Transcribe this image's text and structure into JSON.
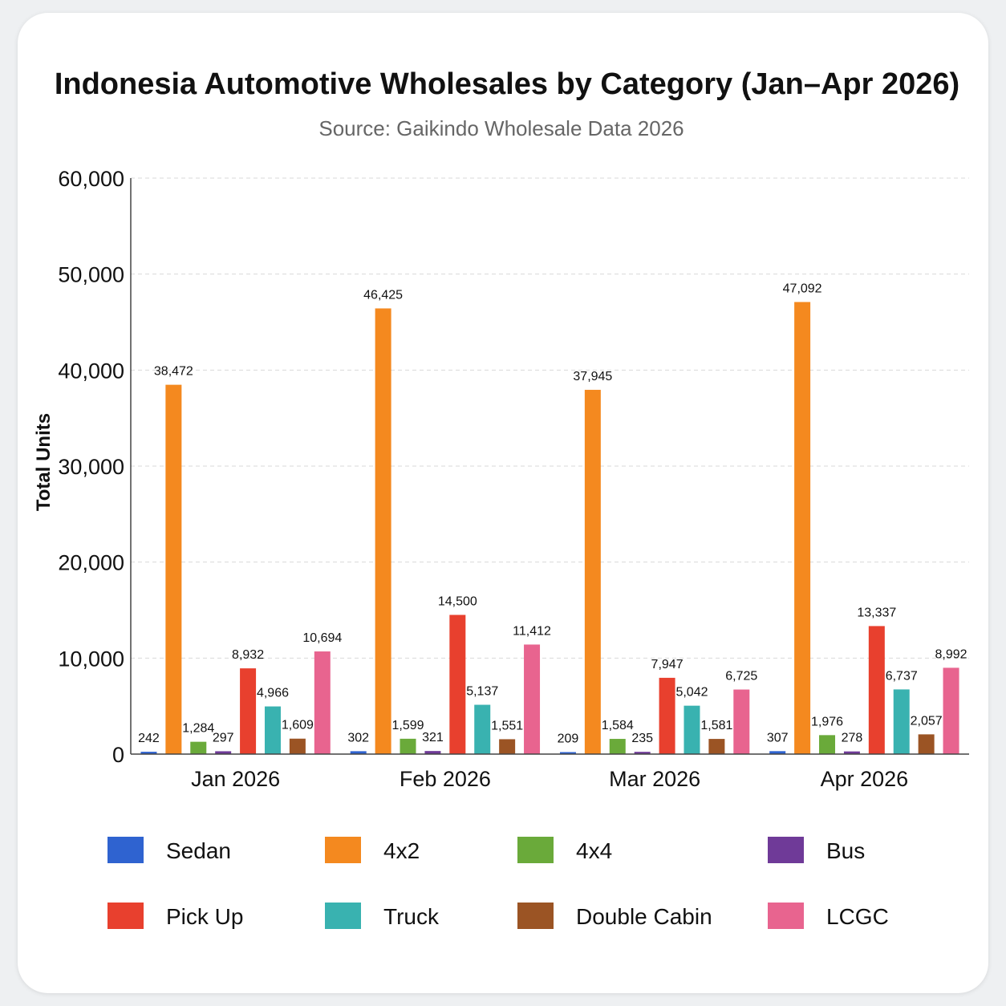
{
  "chart_data": {
    "type": "bar",
    "title": "Indonesia Automotive Wholesales by Category (Jan–Apr 2026)",
    "subtitle": "Source: Gaikindo Wholesale Data 2026",
    "xlabel": "",
    "ylabel": "Total Units",
    "ylim": [
      0,
      60000
    ],
    "yticks": [
      0,
      10000,
      20000,
      30000,
      40000,
      50000,
      60000
    ],
    "ytick_labels": [
      "0",
      "10,000",
      "20,000",
      "30,000",
      "40,000",
      "50,000",
      "60,000"
    ],
    "grid": true,
    "legend_position": "bottom",
    "categories": [
      "Jan 2026",
      "Feb 2026",
      "Mar 2026",
      "Apr 2026"
    ],
    "series": [
      {
        "name": "Sedan",
        "color": "#2f63d0",
        "values": [
          242,
          302,
          209,
          307
        ],
        "labels": [
          "242",
          "302",
          "209",
          "307"
        ]
      },
      {
        "name": "4x2",
        "color": "#f4891f",
        "values": [
          38472,
          46425,
          37945,
          47092
        ],
        "labels": [
          "38,472",
          "46,425",
          "37,945",
          "47,092"
        ]
      },
      {
        "name": "4x4",
        "color": "#6aaa3a",
        "values": [
          1284,
          1599,
          1584,
          1976
        ],
        "labels": [
          "1,284",
          "1,599",
          "1,584",
          "1,976"
        ]
      },
      {
        "name": "Bus",
        "color": "#6f3a98",
        "values": [
          297,
          321,
          235,
          278
        ],
        "labels": [
          "297",
          "321",
          "235",
          "278"
        ]
      },
      {
        "name": "Pick Up",
        "color": "#e8402e",
        "values": [
          8932,
          14500,
          7947,
          13337
        ],
        "labels": [
          "8,932",
          "14,500",
          "7,947",
          "13,337"
        ]
      },
      {
        "name": "Truck",
        "color": "#39b2b0",
        "values": [
          4966,
          5137,
          5042,
          6737
        ],
        "labels": [
          "4,966",
          "5,137",
          "5,042",
          "6,737"
        ]
      },
      {
        "name": "Double Cabin",
        "color": "#9b5424",
        "values": [
          1609,
          1551,
          1581,
          2057
        ],
        "labels": [
          "1,609",
          "1,551",
          "1,581",
          "2,057"
        ]
      },
      {
        "name": "LCGC",
        "color": "#e8648f",
        "values": [
          10694,
          11412,
          6725,
          8992
        ],
        "labels": [
          "10,694",
          "11,412",
          "6,725",
          "8,992"
        ]
      }
    ]
  }
}
